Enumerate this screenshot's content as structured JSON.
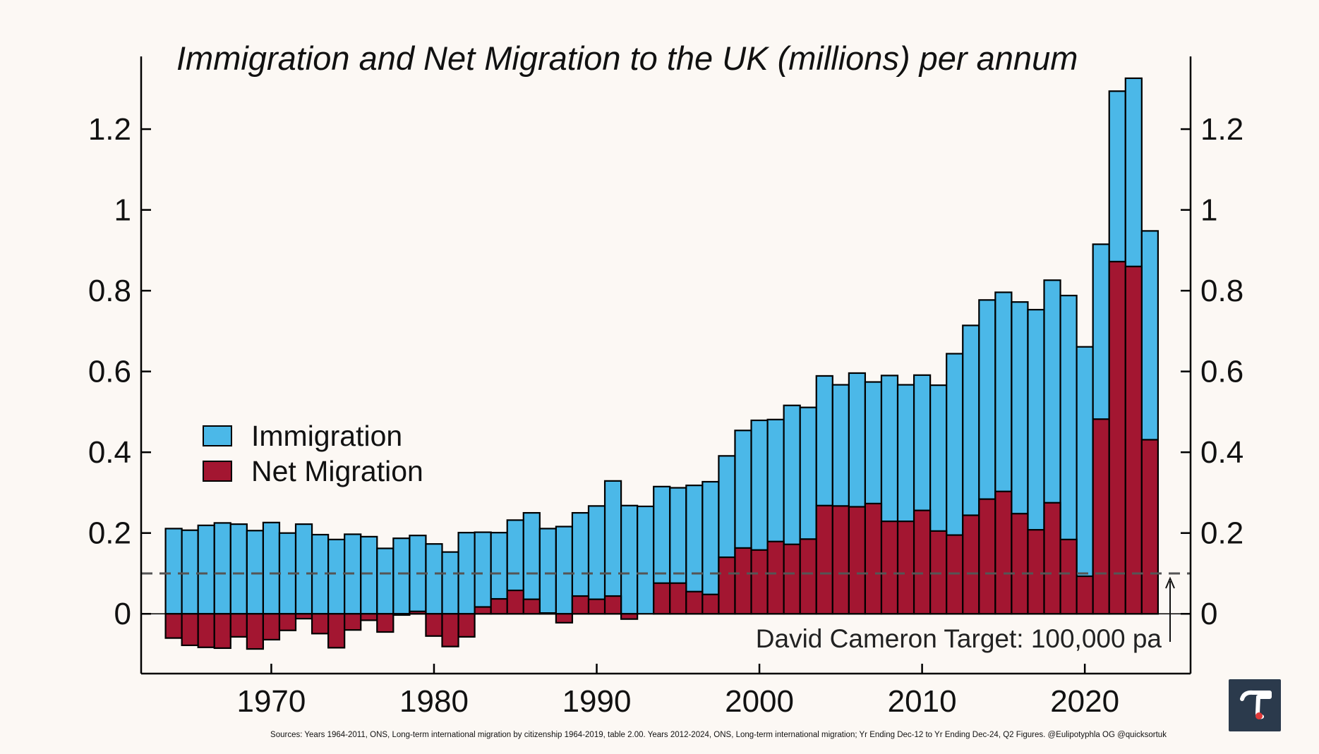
{
  "chart_data": {
    "type": "bar",
    "title": "Immigration and Net Migration to the UK (millions) per annum",
    "xlabel": "",
    "ylabel": "",
    "x": [
      1964,
      1965,
      1966,
      1967,
      1968,
      1969,
      1970,
      1971,
      1972,
      1973,
      1974,
      1975,
      1976,
      1977,
      1978,
      1979,
      1980,
      1981,
      1982,
      1983,
      1984,
      1985,
      1986,
      1987,
      1988,
      1989,
      1990,
      1991,
      1992,
      1993,
      1994,
      1995,
      1996,
      1997,
      1998,
      1999,
      2000,
      2001,
      2002,
      2003,
      2004,
      2005,
      2006,
      2007,
      2008,
      2009,
      2010,
      2011,
      2012,
      2013,
      2014,
      2015,
      2016,
      2017,
      2018,
      2019,
      2020,
      2021,
      2022,
      2023,
      2024
    ],
    "series": [
      {
        "name": "Immigration",
        "color": "#4bb8e8",
        "values": [
          0.211,
          0.207,
          0.219,
          0.225,
          0.222,
          0.206,
          0.226,
          0.2,
          0.222,
          0.196,
          0.184,
          0.197,
          0.191,
          0.162,
          0.187,
          0.194,
          0.173,
          0.153,
          0.201,
          0.202,
          0.201,
          0.232,
          0.25,
          0.211,
          0.216,
          0.25,
          0.267,
          0.329,
          0.268,
          0.266,
          0.315,
          0.312,
          0.318,
          0.327,
          0.391,
          0.454,
          0.479,
          0.481,
          0.516,
          0.511,
          0.589,
          0.567,
          0.596,
          0.574,
          0.59,
          0.567,
          0.591,
          0.566,
          0.644,
          0.714,
          0.777,
          0.796,
          0.772,
          0.753,
          0.826,
          0.788,
          0.661,
          0.915,
          1.294,
          1.326,
          0.948
        ]
      },
      {
        "name": "Net Migration",
        "color": "#a31631",
        "values": [
          -0.06,
          -0.078,
          -0.083,
          -0.085,
          -0.057,
          -0.087,
          -0.064,
          -0.041,
          -0.012,
          -0.049,
          -0.084,
          -0.04,
          -0.016,
          -0.045,
          -0.003,
          0.006,
          -0.055,
          -0.081,
          -0.057,
          0.017,
          0.037,
          0.058,
          0.036,
          0.002,
          -0.022,
          0.044,
          0.036,
          0.044,
          -0.013,
          0.0,
          0.076,
          0.076,
          0.055,
          0.048,
          0.14,
          0.163,
          0.158,
          0.179,
          0.172,
          0.185,
          0.268,
          0.267,
          0.265,
          0.273,
          0.229,
          0.229,
          0.256,
          0.205,
          0.195,
          0.244,
          0.284,
          0.303,
          0.248,
          0.208,
          0.275,
          0.184,
          0.093,
          0.482,
          0.872,
          0.86,
          0.431
        ]
      }
    ],
    "ylim": [
      -0.148,
      1.38
    ],
    "xlim": [
      1962,
      2026.5
    ],
    "yticks": [
      "0",
      "0.2",
      "0.4",
      "0.6",
      "0.8",
      "1",
      "1.2"
    ],
    "ytick_values": [
      0,
      0.2,
      0.4,
      0.6,
      0.8,
      1.0,
      1.2
    ],
    "xticks": [
      "1970",
      "1980",
      "1990",
      "2000",
      "2010",
      "2020"
    ],
    "xtick_values": [
      1970,
      1980,
      1990,
      2000,
      2010,
      2020
    ],
    "target_line": {
      "value": 0.1,
      "color": "#555555"
    },
    "annotation": "David Cameron Target: 100,000 pa",
    "legend": {
      "placement": "center-left"
    },
    "grid": false
  },
  "source_note": "Sources: Years 1964-2011, ONS, Long-term international migration by citizenship 1964-2019, table 2.00. Years 2012-2024, ONS, Long-term international migration; Yr Ending Dec-12 to Yr Ending Dec-24, Q2 Figures. @Eulipotyphla OG @quicksortuk",
  "logo": {
    "glyph": "τ",
    "icon": "tau-logo-icon"
  }
}
